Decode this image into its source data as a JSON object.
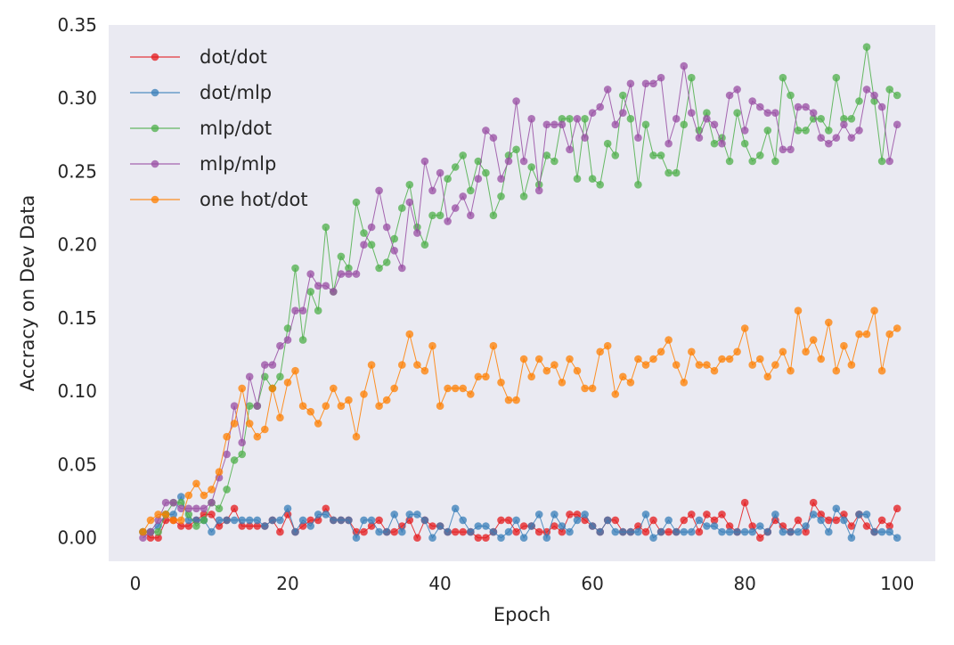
{
  "chart_data": {
    "type": "line",
    "title": "",
    "xlabel": "Epoch",
    "ylabel": "Accracy on Dev Data",
    "xlim": [
      -3.5,
      105
    ],
    "ylim": [
      -0.016,
      0.35
    ],
    "xticks": [
      0,
      20,
      40,
      60,
      80,
      100
    ],
    "yticks": [
      0.0,
      0.05,
      0.1,
      0.15,
      0.2,
      0.25,
      0.3,
      0.35
    ],
    "ytick_labels": [
      "0.00",
      "0.05",
      "0.10",
      "0.15",
      "0.20",
      "0.25",
      "0.30",
      "0.35"
    ],
    "xtick_labels": [
      "0",
      "20",
      "40",
      "60",
      "80",
      "100"
    ],
    "grid": false,
    "background": "#eaeaf2",
    "legend_position": "top-left",
    "x_start": 1,
    "series": [
      {
        "name": "dot/dot",
        "color": "#e41a1c",
        "values": [
          0.004,
          0,
          0,
          0.012,
          0.012,
          0.008,
          0.008,
          0.012,
          0.016,
          0.016,
          0.008,
          0.012,
          0.02,
          0.008,
          0.008,
          0.008,
          0.008,
          0.012,
          0.004,
          0.016,
          0.004,
          0.008,
          0.012,
          0.012,
          0.02,
          0.012,
          0.012,
          0.012,
          0.004,
          0.004,
          0.008,
          0.012,
          0.004,
          0.004,
          0.008,
          0.012,
          0,
          0.012,
          0.008,
          0.008,
          0.004,
          0.004,
          0.004,
          0.004,
          0,
          0,
          0.004,
          0.012,
          0.012,
          0.004,
          0.008,
          0.008,
          0.004,
          0.004,
          0.008,
          0.004,
          0.016,
          0.016,
          0.012,
          0.008,
          0.004,
          0.012,
          0.012,
          0.004,
          0.004,
          0.008,
          0.004,
          0.012,
          0.004,
          0.004,
          0.004,
          0.012,
          0.016,
          0.004,
          0.016,
          0.012,
          0.016,
          0.008,
          0.004,
          0.024,
          0.008,
          0,
          0.004,
          0.012,
          0.008,
          0.004,
          0.012,
          0.004,
          0.024,
          0.016,
          0.012,
          0.012,
          0.016,
          0.008,
          0.016,
          0.008,
          0.004,
          0.012,
          0.008,
          0.02
        ]
      },
      {
        "name": "dot/mlp",
        "color": "#377eb8",
        "values": [
          0.004,
          0.004,
          0.008,
          0.016,
          0.016,
          0.028,
          0.012,
          0.012,
          0.012,
          0.004,
          0.012,
          0.012,
          0.012,
          0.012,
          0.012,
          0.012,
          0.008,
          0.012,
          0.012,
          0.02,
          0.004,
          0.012,
          0.008,
          0.016,
          0.016,
          0.012,
          0.012,
          0.012,
          0,
          0.012,
          0.012,
          0.004,
          0.004,
          0.016,
          0.004,
          0.016,
          0.016,
          0.012,
          0,
          0.008,
          0.004,
          0.02,
          0.012,
          0.004,
          0.008,
          0.008,
          0.004,
          0,
          0.004,
          0.012,
          0,
          0.008,
          0.016,
          0,
          0.016,
          0.008,
          0.004,
          0.012,
          0.016,
          0.008,
          0.004,
          0.012,
          0.004,
          0.004,
          0.004,
          0.004,
          0.016,
          0,
          0.004,
          0.012,
          0.004,
          0.004,
          0.004,
          0.012,
          0.008,
          0.008,
          0.004,
          0.004,
          0.004,
          0.004,
          0.004,
          0.008,
          0.004,
          0.016,
          0.004,
          0.004,
          0.004,
          0.008,
          0.016,
          0.012,
          0.004,
          0.02,
          0.012,
          0,
          0.016,
          0.016,
          0.004,
          0.004,
          0.004,
          0
        ]
      },
      {
        "name": "mlp/dot",
        "color": "#4daf4a",
        "values": [
          0.004,
          0.004,
          0.004,
          0.016,
          0.024,
          0.024,
          0.016,
          0.008,
          0.012,
          0.024,
          0.02,
          0.033,
          0.053,
          0.057,
          0.09,
          0.09,
          0.11,
          0.102,
          0.11,
          0.143,
          0.184,
          0.135,
          0.168,
          0.155,
          0.212,
          0.168,
          0.192,
          0.184,
          0.229,
          0.208,
          0.2,
          0.184,
          0.188,
          0.204,
          0.225,
          0.241,
          0.212,
          0.2,
          0.22,
          0.22,
          0.245,
          0.253,
          0.261,
          0.237,
          0.257,
          0.249,
          0.22,
          0.233,
          0.261,
          0.265,
          0.233,
          0.253,
          0.241,
          0.261,
          0.257,
          0.286,
          0.286,
          0.245,
          0.286,
          0.245,
          0.241,
          0.269,
          0.261,
          0.302,
          0.286,
          0.241,
          0.282,
          0.261,
          0.261,
          0.249,
          0.249,
          0.282,
          0.314,
          0.278,
          0.29,
          0.269,
          0.273,
          0.257,
          0.29,
          0.269,
          0.257,
          0.261,
          0.278,
          0.257,
          0.314,
          0.302,
          0.278,
          0.278,
          0.286,
          0.286,
          0.278,
          0.314,
          0.286,
          0.286,
          0.298,
          0.335,
          0.298,
          0.257,
          0.306,
          0.302
        ]
      },
      {
        "name": "mlp/mlp",
        "color": "#984ea3",
        "values": [
          0,
          0.004,
          0.012,
          0.024,
          0.024,
          0.02,
          0.02,
          0.02,
          0.02,
          0.024,
          0.041,
          0.057,
          0.09,
          0.065,
          0.11,
          0.09,
          0.118,
          0.118,
          0.131,
          0.135,
          0.155,
          0.155,
          0.18,
          0.172,
          0.172,
          0.168,
          0.18,
          0.18,
          0.18,
          0.2,
          0.212,
          0.237,
          0.212,
          0.196,
          0.184,
          0.229,
          0.208,
          0.257,
          0.237,
          0.249,
          0.216,
          0.225,
          0.233,
          0.22,
          0.245,
          0.278,
          0.273,
          0.245,
          0.257,
          0.298,
          0.257,
          0.286,
          0.237,
          0.282,
          0.282,
          0.282,
          0.265,
          0.286,
          0.273,
          0.29,
          0.294,
          0.306,
          0.282,
          0.29,
          0.31,
          0.273,
          0.31,
          0.31,
          0.314,
          0.269,
          0.286,
          0.322,
          0.29,
          0.273,
          0.286,
          0.282,
          0.269,
          0.302,
          0.306,
          0.278,
          0.298,
          0.294,
          0.29,
          0.29,
          0.265,
          0.265,
          0.294,
          0.294,
          0.29,
          0.273,
          0.269,
          0.273,
          0.282,
          0.273,
          0.278,
          0.306,
          0.302,
          0.294,
          0.257,
          0.282
        ]
      },
      {
        "name": "one hot/dot",
        "color": "#ff7f00",
        "values": [
          0.004,
          0.012,
          0.016,
          0.016,
          0.012,
          0.012,
          0.029,
          0.037,
          0.029,
          0.033,
          0.045,
          0.069,
          0.078,
          0.102,
          0.078,
          0.069,
          0.074,
          0.102,
          0.082,
          0.106,
          0.114,
          0.09,
          0.086,
          0.078,
          0.09,
          0.102,
          0.09,
          0.094,
          0.069,
          0.098,
          0.118,
          0.09,
          0.094,
          0.102,
          0.118,
          0.139,
          0.118,
          0.114,
          0.131,
          0.09,
          0.102,
          0.102,
          0.102,
          0.098,
          0.11,
          0.11,
          0.131,
          0.106,
          0.094,
          0.094,
          0.122,
          0.11,
          0.122,
          0.114,
          0.118,
          0.106,
          0.122,
          0.114,
          0.102,
          0.102,
          0.127,
          0.131,
          0.098,
          0.11,
          0.106,
          0.122,
          0.118,
          0.122,
          0.127,
          0.135,
          0.118,
          0.106,
          0.127,
          0.118,
          0.118,
          0.114,
          0.122,
          0.122,
          0.127,
          0.143,
          0.118,
          0.122,
          0.11,
          0.118,
          0.127,
          0.114,
          0.155,
          0.127,
          0.135,
          0.122,
          0.147,
          0.114,
          0.131,
          0.118,
          0.139,
          0.139,
          0.155,
          0.114,
          0.139,
          0.143
        ]
      }
    ]
  }
}
